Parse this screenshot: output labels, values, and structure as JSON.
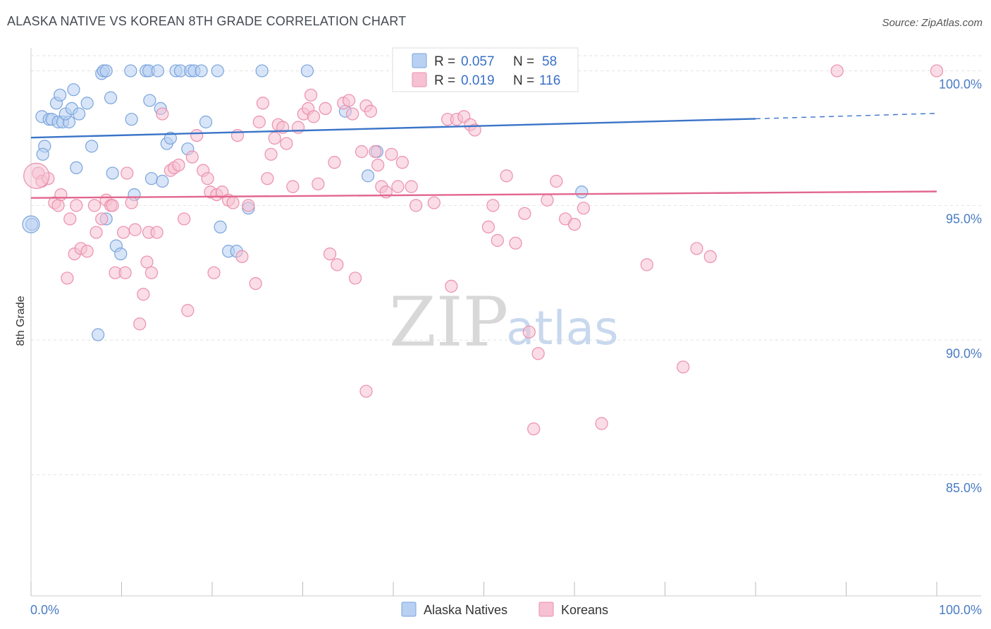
{
  "title": "ALASKA NATIVE VS KOREAN 8TH GRADE CORRELATION CHART",
  "source": "Source: ZipAtlas.com",
  "watermark": {
    "zip": "ZIP",
    "atlas": "atlas"
  },
  "legend": {
    "r_label": "R =",
    "n_label": "N =",
    "rows": [
      {
        "r": "0.057",
        "n": "58"
      },
      {
        "r": "0.019",
        "n": "116"
      }
    ]
  },
  "colors": {
    "blue_fill": "#b8d0f2",
    "blue_stroke": "#7aa4dc",
    "blue_line": "#3a74c8",
    "pink_fill": "#f6c1d2",
    "pink_stroke": "#ec8fad",
    "pink_line": "#e2668e",
    "grid": "#e2e2e2",
    "axis_text": "#4a7cc4"
  },
  "chart_data": {
    "type": "scatter",
    "ylabel": "8th Grade",
    "x_tick_labels": [
      "0.0%",
      "100.0%"
    ],
    "y_tick_labels": [
      "100.0%",
      "95.0%",
      "90.0%",
      "85.0%"
    ],
    "y_ticks": [
      100,
      95,
      90,
      85
    ],
    "xlim": [
      0,
      100
    ],
    "ylim": [
      80.5,
      100.85
    ],
    "grid": true,
    "legend_position": "top-center",
    "series": [
      {
        "name": "Alaska Natives",
        "color_key": "blue",
        "trend": {
          "x0": 0,
          "y0": 97.52,
          "x1": 80,
          "y1": 98.22,
          "dash_to_x": 100,
          "dash_to_y": 98.42
        },
        "points": [
          [
            0.1,
            94.3
          ],
          [
            1.2,
            98.3
          ],
          [
            1.5,
            97.2
          ],
          [
            1.3,
            96.9
          ],
          [
            2.0,
            98.2
          ],
          [
            2.3,
            98.2
          ],
          [
            2.8,
            98.8
          ],
          [
            3.0,
            98.1
          ],
          [
            3.5,
            98.1
          ],
          [
            3.2,
            99.1
          ],
          [
            4.2,
            98.1
          ],
          [
            3.8,
            98.4
          ],
          [
            4.5,
            98.6
          ],
          [
            4.7,
            99.3
          ],
          [
            5.0,
            96.4
          ],
          [
            5.3,
            98.4
          ],
          [
            6.2,
            98.8
          ],
          [
            6.7,
            97.2
          ],
          [
            7.8,
            99.9
          ],
          [
            8.0,
            100.0
          ],
          [
            8.3,
            100.0
          ],
          [
            8.8,
            99.0
          ],
          [
            9.0,
            96.2
          ],
          [
            9.4,
            93.5
          ],
          [
            9.9,
            93.2
          ],
          [
            11.0,
            100.0
          ],
          [
            11.1,
            98.2
          ],
          [
            11.4,
            95.4
          ],
          [
            12.7,
            100.0
          ],
          [
            13.0,
            100.0
          ],
          [
            13.1,
            98.9
          ],
          [
            13.3,
            96.0
          ],
          [
            14.0,
            100.0
          ],
          [
            14.3,
            98.6
          ],
          [
            14.5,
            95.9
          ],
          [
            15.0,
            97.3
          ],
          [
            15.4,
            97.5
          ],
          [
            16.0,
            100.0
          ],
          [
            16.5,
            100.0
          ],
          [
            17.3,
            97.1
          ],
          [
            17.6,
            100.0
          ],
          [
            18.0,
            100.0
          ],
          [
            18.8,
            100.0
          ],
          [
            19.3,
            98.1
          ],
          [
            20.6,
            100.0
          ],
          [
            20.9,
            94.2
          ],
          [
            21.8,
            93.3
          ],
          [
            22.7,
            93.3
          ],
          [
            24.0,
            94.9
          ],
          [
            25.5,
            100.0
          ],
          [
            30.5,
            100.0
          ],
          [
            34.7,
            98.5
          ],
          [
            38.2,
            97.0
          ],
          [
            37.2,
            96.1
          ],
          [
            53.6,
            100.0
          ],
          [
            60.8,
            95.5
          ],
          [
            7.4,
            90.2
          ],
          [
            8.3,
            94.5
          ]
        ]
      },
      {
        "name": "Koreans",
        "color_key": "pink",
        "trend": {
          "x0": 0,
          "y0": 95.28,
          "x1": 100,
          "y1": 95.52
        },
        "points": [
          [
            0.8,
            96.2
          ],
          [
            1.2,
            95.9
          ],
          [
            1.9,
            96.0
          ],
          [
            2.6,
            95.1
          ],
          [
            3.0,
            95.0
          ],
          [
            3.3,
            95.4
          ],
          [
            4.0,
            92.3
          ],
          [
            4.3,
            94.5
          ],
          [
            4.8,
            93.2
          ],
          [
            5.0,
            95.0
          ],
          [
            5.5,
            93.4
          ],
          [
            6.2,
            93.3
          ],
          [
            7.0,
            95.0
          ],
          [
            7.2,
            94.0
          ],
          [
            7.8,
            94.5
          ],
          [
            8.3,
            95.2
          ],
          [
            8.8,
            95.0
          ],
          [
            9.0,
            95.0
          ],
          [
            9.3,
            92.5
          ],
          [
            10.2,
            94.0
          ],
          [
            10.4,
            92.5
          ],
          [
            10.6,
            96.2
          ],
          [
            11.1,
            95.1
          ],
          [
            11.5,
            94.1
          ],
          [
            12.0,
            90.6
          ],
          [
            12.4,
            91.7
          ],
          [
            12.8,
            92.9
          ],
          [
            13.0,
            94.0
          ],
          [
            13.3,
            92.5
          ],
          [
            13.9,
            94.0
          ],
          [
            14.5,
            98.4
          ],
          [
            15.4,
            96.3
          ],
          [
            15.8,
            96.4
          ],
          [
            16.3,
            96.5
          ],
          [
            16.9,
            94.5
          ],
          [
            17.3,
            91.1
          ],
          [
            17.8,
            96.8
          ],
          [
            18.3,
            97.6
          ],
          [
            19.0,
            96.3
          ],
          [
            19.5,
            96.0
          ],
          [
            19.8,
            95.5
          ],
          [
            20.2,
            92.5
          ],
          [
            20.5,
            95.4
          ],
          [
            21.1,
            95.5
          ],
          [
            21.8,
            95.2
          ],
          [
            22.3,
            95.1
          ],
          [
            22.8,
            97.6
          ],
          [
            23.3,
            93.1
          ],
          [
            24.0,
            95.0
          ],
          [
            24.8,
            92.1
          ],
          [
            25.2,
            98.1
          ],
          [
            25.6,
            98.8
          ],
          [
            26.1,
            96.0
          ],
          [
            26.5,
            96.9
          ],
          [
            26.9,
            97.5
          ],
          [
            27.3,
            98.0
          ],
          [
            27.8,
            97.9
          ],
          [
            28.2,
            97.3
          ],
          [
            28.9,
            95.7
          ],
          [
            29.5,
            97.9
          ],
          [
            30.1,
            98.4
          ],
          [
            30.6,
            98.6
          ],
          [
            30.9,
            99.1
          ],
          [
            31.2,
            98.3
          ],
          [
            31.7,
            95.8
          ],
          [
            32.5,
            98.6
          ],
          [
            33.0,
            93.2
          ],
          [
            33.5,
            96.6
          ],
          [
            33.8,
            92.8
          ],
          [
            34.5,
            98.8
          ],
          [
            35.1,
            98.9
          ],
          [
            35.5,
            98.4
          ],
          [
            35.8,
            92.3
          ],
          [
            36.5,
            97.0
          ],
          [
            37.0,
            98.7
          ],
          [
            37.5,
            98.5
          ],
          [
            38.0,
            97.0
          ],
          [
            38.3,
            96.5
          ],
          [
            38.7,
            95.7
          ],
          [
            39.2,
            95.5
          ],
          [
            39.8,
            96.9
          ],
          [
            40.5,
            95.7
          ],
          [
            41.0,
            96.6
          ],
          [
            42.0,
            95.7
          ],
          [
            42.5,
            95.0
          ],
          [
            43.8,
            100.0
          ],
          [
            44.5,
            95.1
          ],
          [
            45.3,
            100.0
          ],
          [
            46.0,
            98.2
          ],
          [
            46.4,
            92.0
          ],
          [
            47.0,
            98.2
          ],
          [
            47.8,
            98.3
          ],
          [
            48.5,
            98.0
          ],
          [
            49.0,
            97.8
          ],
          [
            50.5,
            94.2
          ],
          [
            51.0,
            95.0
          ],
          [
            51.5,
            93.7
          ],
          [
            52.5,
            96.1
          ],
          [
            53.5,
            93.6
          ],
          [
            54.5,
            94.7
          ],
          [
            55.0,
            90.3
          ],
          [
            56.0,
            89.5
          ],
          [
            57.0,
            95.2
          ],
          [
            58.0,
            95.9
          ],
          [
            59.0,
            94.5
          ],
          [
            60.0,
            94.3
          ],
          [
            61.0,
            94.9
          ],
          [
            63.0,
            86.9
          ],
          [
            68.0,
            92.8
          ],
          [
            72.0,
            89.0
          ],
          [
            73.5,
            93.4
          ],
          [
            75.0,
            93.1
          ],
          [
            89.0,
            100.0
          ],
          [
            100.0,
            100.0
          ],
          [
            37.0,
            88.1
          ],
          [
            55.5,
            86.7
          ]
        ]
      }
    ]
  },
  "bottom_legend": [
    "Alaska Natives",
    "Koreans"
  ]
}
